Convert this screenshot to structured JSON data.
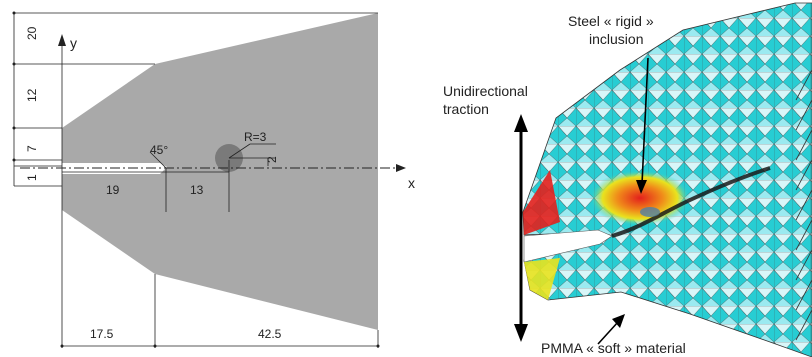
{
  "left_drawing": {
    "axis_x": "x",
    "axis_y": "y",
    "angle": "45°",
    "radius": "R=3",
    "vertical_dims": [
      "20",
      "12",
      "7",
      "1"
    ],
    "horizontal_dims_mid": [
      "19",
      "13"
    ],
    "horizontal_dims_bottom": [
      "17.5",
      "42.5"
    ],
    "small_dim": "2"
  },
  "right_drawing": {
    "traction_label": "Unidirectional\ntraction",
    "traction_line1": "Unidirectional",
    "traction_line2": "traction",
    "inclusion_line1": "Steel « rigid »",
    "inclusion_line2": "inclusion",
    "material_label": "PMMA « soft » material"
  },
  "colors": {
    "specimen_gray": "#a9a9a9",
    "inclusion_gray": "#7a7a7a",
    "mesh_cyan": "#27cdd3",
    "mesh_light": "#d8f6f8",
    "stress_red": "#e3201c",
    "stress_orange": "#f08a1a",
    "stress_yellow": "#e9e31e"
  }
}
